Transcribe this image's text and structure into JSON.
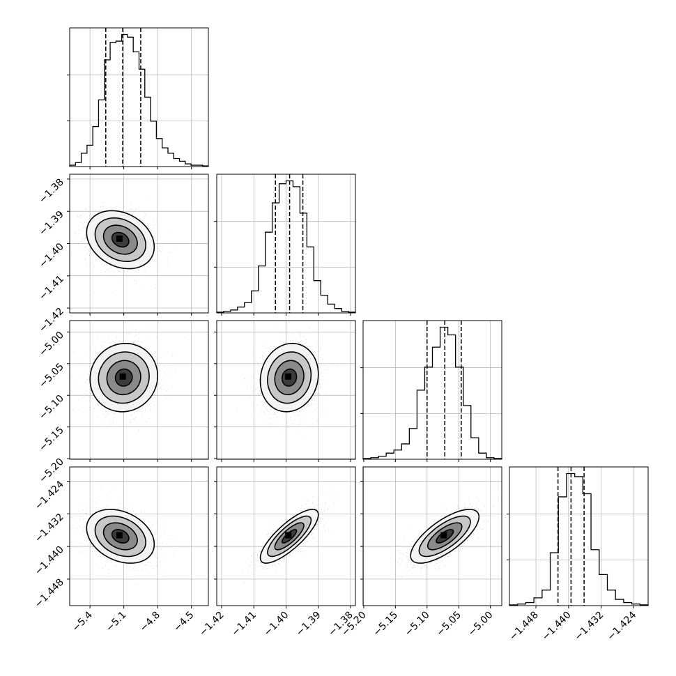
{
  "chart_data": {
    "type": "corner",
    "grid": true,
    "colors": {
      "axis": "#000000",
      "grid": "#b0b0b0",
      "scatter": "#9a9a9a",
      "contour": "#000000"
    },
    "parameters": [
      {
        "id": "p1",
        "range": [
          -5.58,
          -4.35
        ],
        "ticks": [
          -5.4,
          -5.1,
          -4.8,
          -4.5
        ],
        "tick_labels": [
          "−5.4",
          "−5.1",
          "−4.8",
          "−4.5"
        ]
      },
      {
        "id": "p2",
        "range": [
          -1.4215,
          -1.3785
        ],
        "ticks": [
          -1.42,
          -1.41,
          -1.4,
          -1.39,
          -1.38
        ],
        "tick_labels": [
          "−1.42",
          "−1.41",
          "−1.40",
          "−1.39",
          "−1.38"
        ]
      },
      {
        "id": "p3",
        "range": [
          -5.201,
          -4.982
        ],
        "ticks": [
          -5.2,
          -5.15,
          -5.1,
          -5.05,
          -5.0
        ],
        "tick_labels": [
          "−5.20",
          "−5.15",
          "−5.10",
          "−5.05",
          "−5.00"
        ]
      },
      {
        "id": "p4",
        "range": [
          -1.4545,
          -1.4205
        ],
        "ticks": [
          -1.448,
          -1.44,
          -1.432,
          -1.424
        ],
        "tick_labels": [
          "−1.448",
          "−1.440",
          "−1.432",
          "−1.424"
        ]
      }
    ],
    "histograms": [
      {
        "param": "p1",
        "quantiles": [
          -5.26,
          -5.11,
          -4.95
        ],
        "counts": [
          1,
          3,
          10,
          16,
          30,
          50,
          80,
          93,
          94,
          99,
          97,
          86,
          73,
          52,
          34,
          21,
          14,
          10,
          6,
          4,
          2,
          1,
          1,
          0.5
        ]
      },
      {
        "param": "p2",
        "quantiles": [
          -1.4033,
          -1.3989,
          -1.3948
        ],
        "counts": [
          0.5,
          1,
          2,
          4,
          7,
          15,
          32,
          55,
          75,
          88,
          90,
          86,
          68,
          45,
          22,
          12,
          6,
          3,
          1,
          0.5
        ]
      },
      {
        "param": "p3",
        "quantiles": [
          -5.1,
          -5.072,
          -5.046
        ],
        "counts": [
          0.5,
          1,
          2,
          4,
          6,
          10,
          20,
          45,
          60,
          73,
          86,
          81,
          60,
          35,
          14,
          4,
          1,
          0.5
        ]
      },
      {
        "param": "p4",
        "quantiles": [
          -1.4426,
          -1.4394,
          -1.4362
        ],
        "counts": [
          0.5,
          1,
          2,
          5,
          10,
          34,
          70,
          85,
          83,
          72,
          36,
          20,
          10,
          4,
          2,
          1,
          0.5
        ]
      }
    ],
    "pairs": [
      {
        "x": "p1",
        "y": "p2",
        "mean": [
          -5.13,
          -1.3988
        ],
        "sd": [
          0.15,
          0.0045
        ],
        "rho": -0.25
      },
      {
        "x": "p1",
        "y": "p3",
        "mean": [
          -5.1,
          -5.072
        ],
        "sd": [
          0.15,
          0.027
        ],
        "rho": 0.05
      },
      {
        "x": "p2",
        "y": "p3",
        "mean": [
          -1.399,
          -5.072
        ],
        "sd": [
          0.0045,
          0.027
        ],
        "rho": 0.1
      },
      {
        "x": "p1",
        "y": "p4",
        "mean": [
          -5.13,
          -1.4375
        ],
        "sd": [
          0.15,
          0.0033
        ],
        "rho": -0.3
      },
      {
        "x": "p2",
        "y": "p4",
        "mean": [
          -1.399,
          -1.4375
        ],
        "sd": [
          0.0045,
          0.0033
        ],
        "rho": 0.8
      },
      {
        "x": "p3",
        "y": "p4",
        "mean": [
          -5.072,
          -1.4375
        ],
        "sd": [
          0.027,
          0.0033
        ],
        "rho": 0.72
      }
    ],
    "contour_levels_sigma": [
      0.5,
      1.0,
      1.5,
      2.0
    ]
  }
}
